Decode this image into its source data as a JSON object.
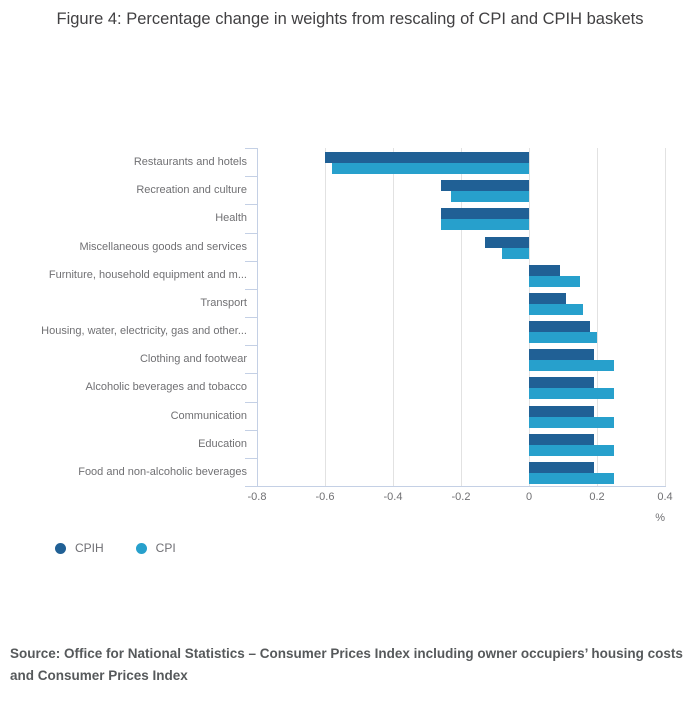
{
  "title": "Figure 4: Percentage change in weights from rescaling of CPI and CPIH baskets",
  "source": "Source: Office for National Statistics – Consumer Prices Index including owner occupiers’ housing costs and Consumer Prices Index",
  "colors": {
    "cpih": "#206095",
    "cpi": "#27a0cc",
    "gridline": "#e2e2e2",
    "axis": "#c4d0e5",
    "label_text": "#707073",
    "title_text": "#414042",
    "source_text": "#56595b"
  },
  "chart_data": {
    "type": "bar",
    "orientation": "horizontal",
    "title": "Figure 4: Percentage change in weights from rescaling of CPI and CPIH baskets",
    "xlabel": "%",
    "xlim": [
      -0.8,
      0.4
    ],
    "x_ticks": [
      "-0.8",
      "-0.6",
      "-0.4",
      "-0.2",
      "0",
      "0.2",
      "0.4"
    ],
    "grid": true,
    "legend_position": "bottom-left",
    "categories": [
      "Restaurants and hotels",
      "Recreation and culture",
      "Health",
      "Miscellaneous goods and services",
      "Furniture, household equipment and m...",
      "Transport",
      "Housing, water, electricity, gas and other...",
      "Clothing and footwear",
      "Alcoholic beverages and tobacco",
      "Communication",
      "Education",
      "Food and non-alcoholic beverages"
    ],
    "series": [
      {
        "name": "CPIH",
        "color": "#206095",
        "values": [
          -0.6,
          -0.26,
          -0.26,
          -0.13,
          0.09,
          0.11,
          0.18,
          0.19,
          0.19,
          0.19,
          0.19,
          0.19
        ]
      },
      {
        "name": "CPI",
        "color": "#27a0cc",
        "values": [
          -0.58,
          -0.23,
          -0.26,
          -0.08,
          0.15,
          0.16,
          0.2,
          0.25,
          0.25,
          0.25,
          0.25,
          0.25
        ]
      }
    ]
  }
}
